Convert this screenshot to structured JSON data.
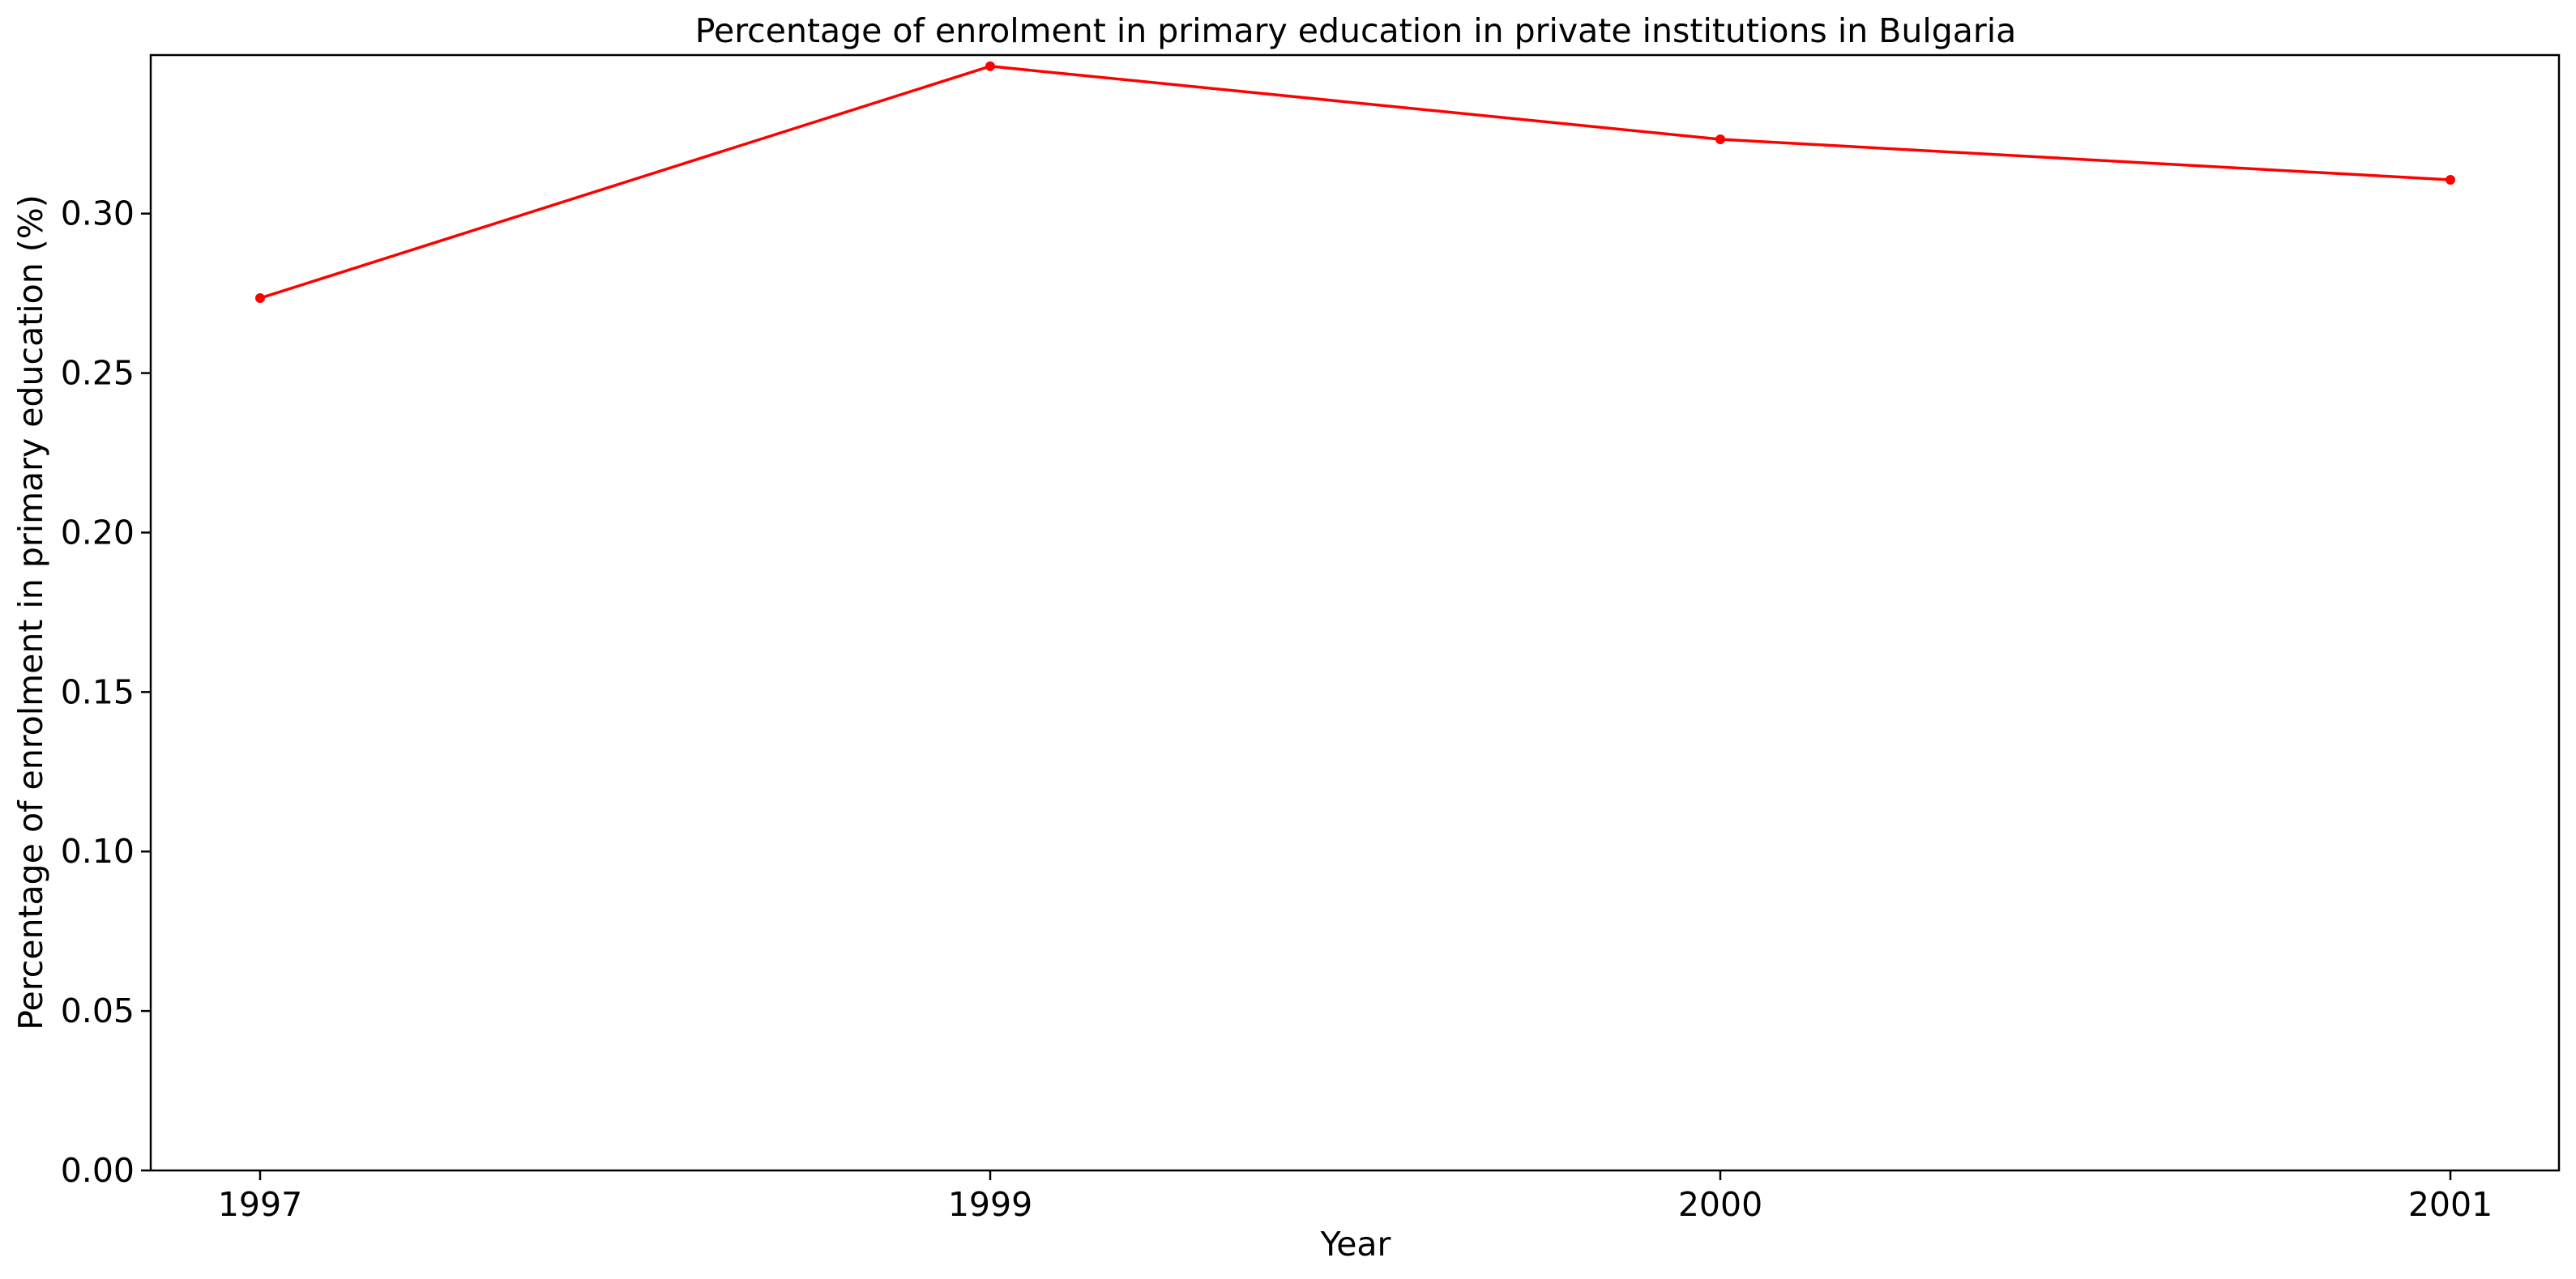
{
  "chart_data": {
    "type": "line",
    "title": "Percentage of enrolment in primary education in private institutions in Bulgaria",
    "xlabel": "Year",
    "ylabel": "Percentage of enrolment in primary education (%)",
    "categories": [
      "1997",
      "1999",
      "2000",
      "2001"
    ],
    "series": [
      {
        "values": [
          0.2735,
          0.3462,
          0.3233,
          0.3106
        ],
        "color": "#ff0000",
        "marker": "circle"
      }
    ],
    "ylim": [
      0,
      0.3497
    ],
    "yticks": [
      0.0,
      0.05,
      0.1,
      0.15,
      0.2,
      0.25,
      0.3
    ],
    "ytick_labels": [
      "0.00",
      "0.05",
      "0.10",
      "0.15",
      "0.20",
      "0.25",
      "0.30"
    ],
    "grid": false,
    "legend": "none"
  }
}
